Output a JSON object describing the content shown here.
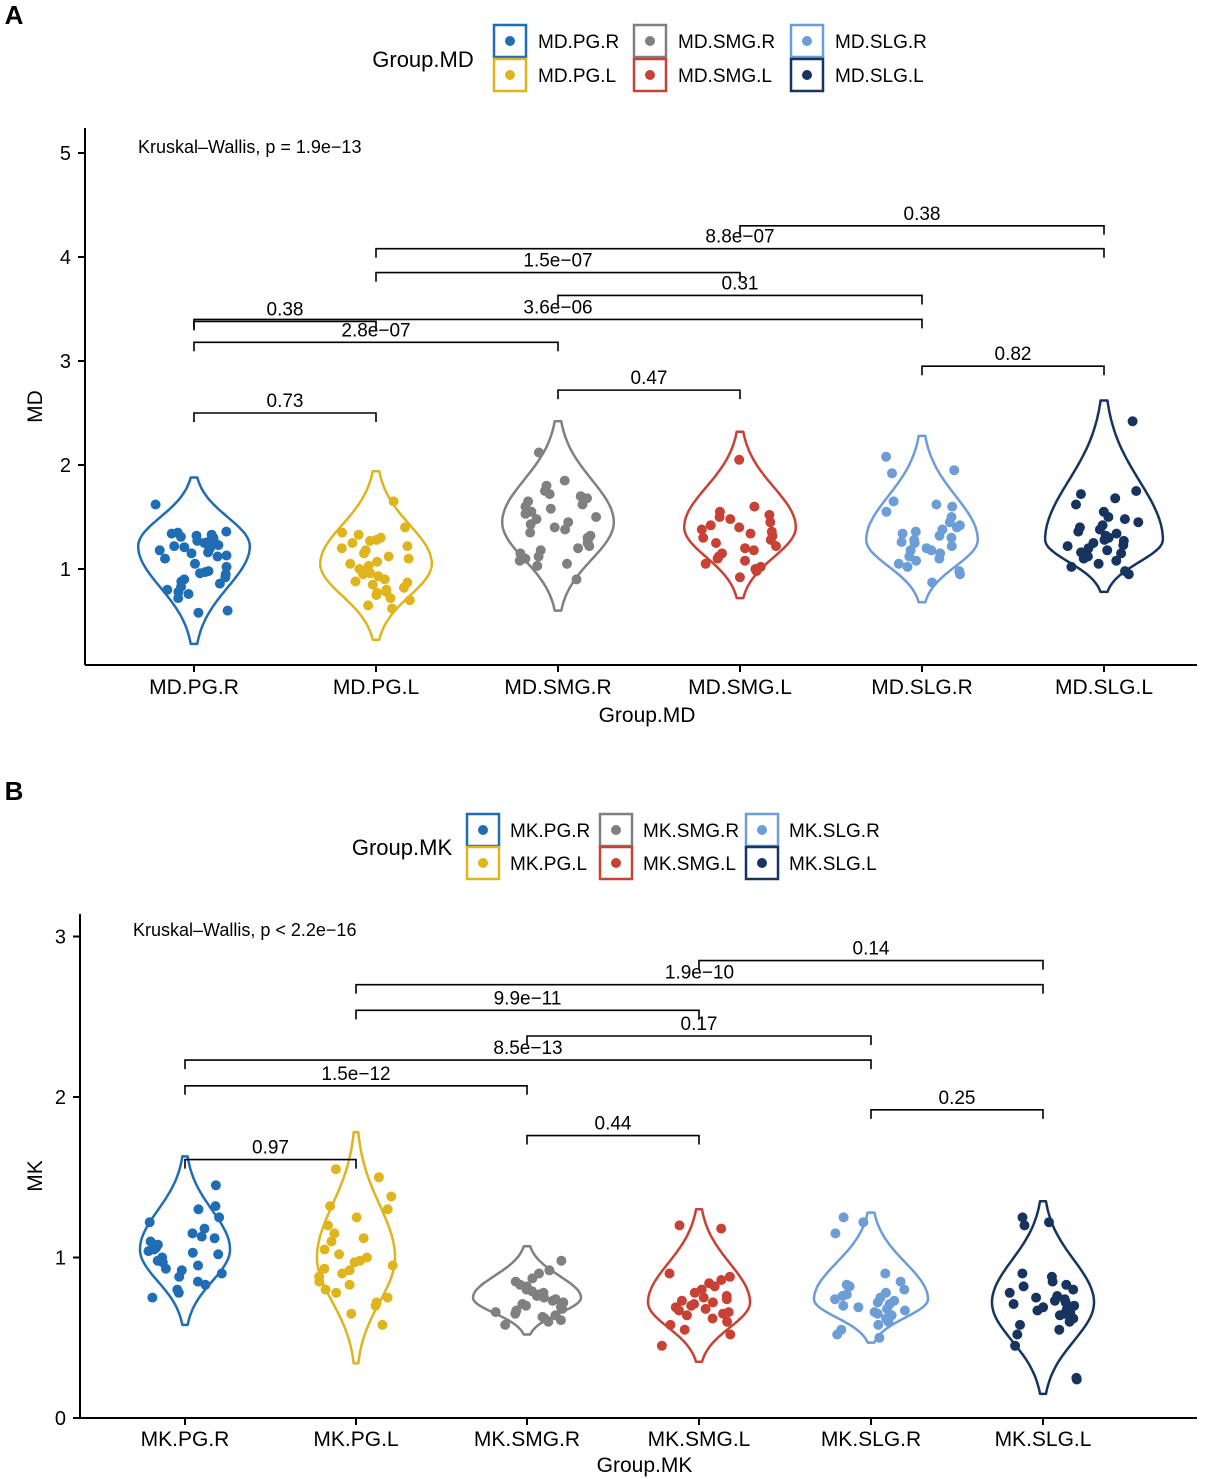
{
  "colors": {
    "PG.R": "#1f6db4",
    "PG.L": "#e0b41c",
    "SMG.R": "#808080",
    "SMG.L": "#c84135",
    "SLG.R": "#6c9dd6",
    "SLG.L": "#17345f",
    "axis": "#000000"
  },
  "chart_data": [
    {
      "panel_label": "A",
      "type": "violin",
      "legend_title": "Group.MD",
      "legend_rows": [
        [
          "MD.PG.R",
          "MD.SMG.R",
          "MD.SLG.R"
        ],
        [
          "MD.PG.L",
          "MD.SMG.L",
          "MD.SLG.L"
        ]
      ],
      "categories": [
        "MD.PG.R",
        "MD.PG.L",
        "MD.SMG.R",
        "MD.SMG.L",
        "MD.SLG.R",
        "MD.SLG.L"
      ],
      "color_keys": [
        "PG.R",
        "PG.L",
        "SMG.R",
        "SMG.L",
        "SLG.R",
        "SLG.L"
      ],
      "xlabel": "Group.MD",
      "ylabel": "MD",
      "ylim": [
        0.1,
        5.3
      ],
      "yticks": [
        1,
        2,
        3,
        4,
        5
      ],
      "annotation": "Kruskal–Wallis, p = 1.9e−13",
      "violins": [
        {
          "min": 0.28,
          "max": 1.88,
          "mode": 1.22,
          "width": 0.9
        },
        {
          "min": 0.32,
          "max": 1.94,
          "mode": 1.05,
          "width": 0.9
        },
        {
          "min": 0.6,
          "max": 2.42,
          "mode": 1.45,
          "width": 0.9
        },
        {
          "min": 0.72,
          "max": 2.32,
          "mode": 1.4,
          "width": 0.9
        },
        {
          "min": 0.68,
          "max": 2.28,
          "mode": 1.28,
          "width": 0.9
        },
        {
          "min": 0.78,
          "max": 2.62,
          "mode": 1.28,
          "width": 0.95
        }
      ],
      "points": [
        [
          1.62,
          1.36,
          1.35,
          1.34,
          1.33,
          1.32,
          1.31,
          1.3,
          1.28,
          1.27,
          1.26,
          1.25,
          1.23,
          1.22,
          1.21,
          1.2,
          1.19,
          1.18,
          1.16,
          1.15,
          1.13,
          1.12,
          1.1,
          1.05,
          1.02,
          0.98,
          0.97,
          0.96,
          0.95,
          0.92,
          0.9,
          0.88,
          0.86,
          0.83,
          0.8,
          0.78,
          0.76,
          0.72,
          0.6,
          0.58
        ],
        [
          1.65,
          1.4,
          1.35,
          1.33,
          1.3,
          1.28,
          1.27,
          1.25,
          1.22,
          1.2,
          1.18,
          1.15,
          1.12,
          1.1,
          1.07,
          1.05,
          1.03,
          1.0,
          0.98,
          0.96,
          0.95,
          0.93,
          0.9,
          0.88,
          0.87,
          0.85,
          0.82,
          0.8,
          0.78,
          0.77,
          0.75,
          0.72,
          0.7,
          0.65,
          0.62
        ],
        [
          2.12,
          1.85,
          1.8,
          1.75,
          1.72,
          1.7,
          1.68,
          1.65,
          1.62,
          1.6,
          1.58,
          1.55,
          1.53,
          1.5,
          1.48,
          1.45,
          1.43,
          1.4,
          1.38,
          1.35,
          1.32,
          1.3,
          1.28,
          1.25,
          1.22,
          1.2,
          1.18,
          1.15,
          1.12,
          1.1,
          1.08,
          1.05,
          1.03,
          0.9
        ],
        [
          2.05,
          1.6,
          1.55,
          1.52,
          1.5,
          1.48,
          1.45,
          1.42,
          1.4,
          1.38,
          1.36,
          1.34,
          1.32,
          1.3,
          1.28,
          1.25,
          1.22,
          1.2,
          1.18,
          1.15,
          1.12,
          1.1,
          1.08,
          1.05,
          1.02,
          1.0,
          0.98,
          0.92
        ],
        [
          2.08,
          1.92,
          1.95,
          1.65,
          1.62,
          1.6,
          1.55,
          1.5,
          1.45,
          1.42,
          1.4,
          1.38,
          1.36,
          1.34,
          1.32,
          1.3,
          1.28,
          1.26,
          1.25,
          1.22,
          1.2,
          1.18,
          1.18,
          1.15,
          1.12,
          1.1,
          1.08,
          1.05,
          1.02,
          0.98,
          0.95,
          0.87
        ],
        [
          2.42,
          1.75,
          1.72,
          1.68,
          1.62,
          1.55,
          1.5,
          1.48,
          1.45,
          1.42,
          1.4,
          1.38,
          1.36,
          1.34,
          1.32,
          1.3,
          1.28,
          1.27,
          1.25,
          1.23,
          1.22,
          1.2,
          1.18,
          1.16,
          1.15,
          1.12,
          1.1,
          1.08,
          1.05,
          1.02,
          0.98,
          0.95
        ]
      ],
      "comparisons": [
        {
          "from": 1,
          "to": 2,
          "y": 3.38,
          "label": "0.38"
        },
        {
          "from": 4,
          "to": 6,
          "y": 4.3,
          "label": "0.38"
        },
        {
          "from": 2,
          "to": 6,
          "y": 4.08,
          "label": "8.8e−07"
        },
        {
          "from": 2,
          "to": 4,
          "y": 3.85,
          "label": "1.5e−07"
        },
        {
          "from": 3,
          "to": 5,
          "y": 3.63,
          "label": "0.31"
        },
        {
          "from": 1,
          "to": 5,
          "y": 3.4,
          "label": "3.6e−06"
        },
        {
          "from": 1,
          "to": 3,
          "y": 3.18,
          "label": "2.8e−07"
        },
        {
          "from": 5,
          "to": 6,
          "y": 2.95,
          "label": "0.82"
        },
        {
          "from": 3,
          "to": 4,
          "y": 2.72,
          "label": "0.47"
        },
        {
          "from": 1,
          "to": 2,
          "y": 2.5,
          "label": "0.73"
        }
      ]
    },
    {
      "panel_label": "B",
      "type": "violin",
      "legend_title": "Group.MK",
      "legend_rows": [
        [
          "MK.PG.R",
          "MK.SMG.R",
          "MK.SLG.R"
        ],
        [
          "MK.PG.L",
          "MK.SMG.L",
          "MK.SLG.L"
        ]
      ],
      "categories": [
        "MK.PG.R",
        "MK.PG.L",
        "MK.SMG.R",
        "MK.SMG.L",
        "MK.SLG.R",
        "MK.SLG.L"
      ],
      "color_keys": [
        "PG.R",
        "PG.L",
        "SMG.R",
        "SMG.L",
        "SLG.R",
        "SLG.L"
      ],
      "xlabel": "Group.MK",
      "ylabel": "MK",
      "ylim": [
        0,
        3.02
      ],
      "yticks": [
        0,
        1,
        2,
        3
      ],
      "annotation": "Kruskal–Wallis, p < 2.2e−16",
      "violins": [
        {
          "min": 0.58,
          "max": 1.63,
          "mode": 1.05,
          "width": 0.75
        },
        {
          "min": 0.34,
          "max": 1.78,
          "mode": 1.0,
          "width": 0.65
        },
        {
          "min": 0.52,
          "max": 1.07,
          "mode": 0.75,
          "width": 0.9
        },
        {
          "min": 0.35,
          "max": 1.3,
          "mode": 0.72,
          "width": 0.85
        },
        {
          "min": 0.47,
          "max": 1.28,
          "mode": 0.74,
          "width": 0.95
        },
        {
          "min": 0.15,
          "max": 1.35,
          "mode": 0.72,
          "width": 0.85
        }
      ],
      "points": [
        [
          1.45,
          1.32,
          1.3,
          1.25,
          1.22,
          1.18,
          1.15,
          1.13,
          1.12,
          1.1,
          1.08,
          1.07,
          1.06,
          1.05,
          1.04,
          1.03,
          1.02,
          1.0,
          0.98,
          0.97,
          0.95,
          0.93,
          0.92,
          0.9,
          0.88,
          0.85,
          0.83,
          0.8,
          0.78,
          0.75
        ],
        [
          1.55,
          1.5,
          1.38,
          1.32,
          1.3,
          1.25,
          1.2,
          1.15,
          1.12,
          1.1,
          1.05,
          1.02,
          1.0,
          0.98,
          0.97,
          0.95,
          0.93,
          0.92,
          0.9,
          0.88,
          0.85,
          0.83,
          0.8,
          0.78,
          0.75,
          0.72,
          0.7,
          0.65,
          0.58
        ],
        [
          0.98,
          0.92,
          0.9,
          0.87,
          0.85,
          0.83,
          0.82,
          0.8,
          0.79,
          0.78,
          0.77,
          0.76,
          0.75,
          0.74,
          0.73,
          0.72,
          0.71,
          0.7,
          0.69,
          0.68,
          0.67,
          0.66,
          0.65,
          0.64,
          0.63,
          0.62,
          0.61,
          0.6,
          0.58
        ],
        [
          1.2,
          1.18,
          0.9,
          0.88,
          0.86,
          0.84,
          0.82,
          0.8,
          0.78,
          0.76,
          0.75,
          0.74,
          0.73,
          0.72,
          0.71,
          0.7,
          0.69,
          0.68,
          0.67,
          0.66,
          0.65,
          0.64,
          0.62,
          0.6,
          0.58,
          0.55,
          0.52,
          0.45
        ],
        [
          1.25,
          1.22,
          1.15,
          0.9,
          0.85,
          0.83,
          0.82,
          0.8,
          0.78,
          0.77,
          0.76,
          0.75,
          0.74,
          0.73,
          0.72,
          0.71,
          0.7,
          0.69,
          0.68,
          0.67,
          0.66,
          0.65,
          0.64,
          0.62,
          0.6,
          0.58,
          0.55,
          0.52,
          0.5
        ],
        [
          1.25,
          1.22,
          1.2,
          0.9,
          0.88,
          0.85,
          0.83,
          0.82,
          0.8,
          0.78,
          0.76,
          0.75,
          0.74,
          0.73,
          0.72,
          0.71,
          0.7,
          0.69,
          0.68,
          0.67,
          0.66,
          0.65,
          0.64,
          0.62,
          0.6,
          0.58,
          0.55,
          0.52,
          0.45,
          0.25,
          0.24
        ]
      ],
      "comparisons": [
        {
          "from": 4,
          "to": 6,
          "y": 2.85,
          "label": "0.14"
        },
        {
          "from": 2,
          "to": 6,
          "y": 2.7,
          "label": "1.9e−10"
        },
        {
          "from": 2,
          "to": 4,
          "y": 2.54,
          "label": "9.9e−11"
        },
        {
          "from": 3,
          "to": 5,
          "y": 2.38,
          "label": "0.17"
        },
        {
          "from": 1,
          "to": 5,
          "y": 2.23,
          "label": "8.5e−13"
        },
        {
          "from": 1,
          "to": 3,
          "y": 2.07,
          "label": "1.5e−12"
        },
        {
          "from": 5,
          "to": 6,
          "y": 1.92,
          "label": "0.25"
        },
        {
          "from": 3,
          "to": 4,
          "y": 1.76,
          "label": "0.44"
        },
        {
          "from": 1,
          "to": 2,
          "y": 1.61,
          "label": "0.97"
        }
      ]
    }
  ]
}
